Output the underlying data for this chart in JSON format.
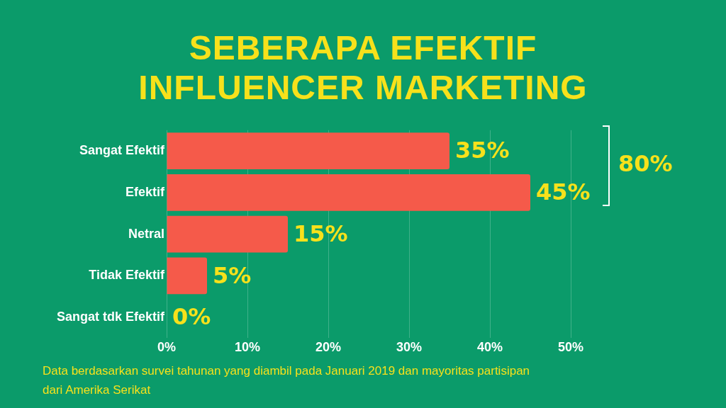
{
  "chart_data": {
    "type": "bar",
    "orientation": "horizontal",
    "title": "SEBERAPA EFEKTIF INFLUENCER MARKETING",
    "categories": [
      "Sangat Efektif",
      "Efektif",
      "Netral",
      "Tidak Efektif",
      "Sangat tdk Efektif"
    ],
    "values": [
      35,
      45,
      15,
      5,
      0
    ],
    "color": "#f55a4a",
    "value_labels": [
      "35%",
      "45%",
      "15%",
      "5%",
      "0%"
    ],
    "xlim": [
      0,
      50
    ],
    "xticks": [
      {
        "value": 0,
        "label": "0%"
      },
      {
        "value": 10,
        "label": "10%"
      },
      {
        "value": 20,
        "label": "20%"
      },
      {
        "value": 30,
        "label": "30%"
      },
      {
        "value": 40,
        "label": "40%"
      },
      {
        "value": 50,
        "label": "50%"
      }
    ],
    "grid": "x",
    "legend": false,
    "annotations": [
      "80%",
      "Data berdasarkan survei tahunan yang diambil pada Januari 2019 dan mayoritas partisipan dari Amerika Serikat"
    ]
  }
}
